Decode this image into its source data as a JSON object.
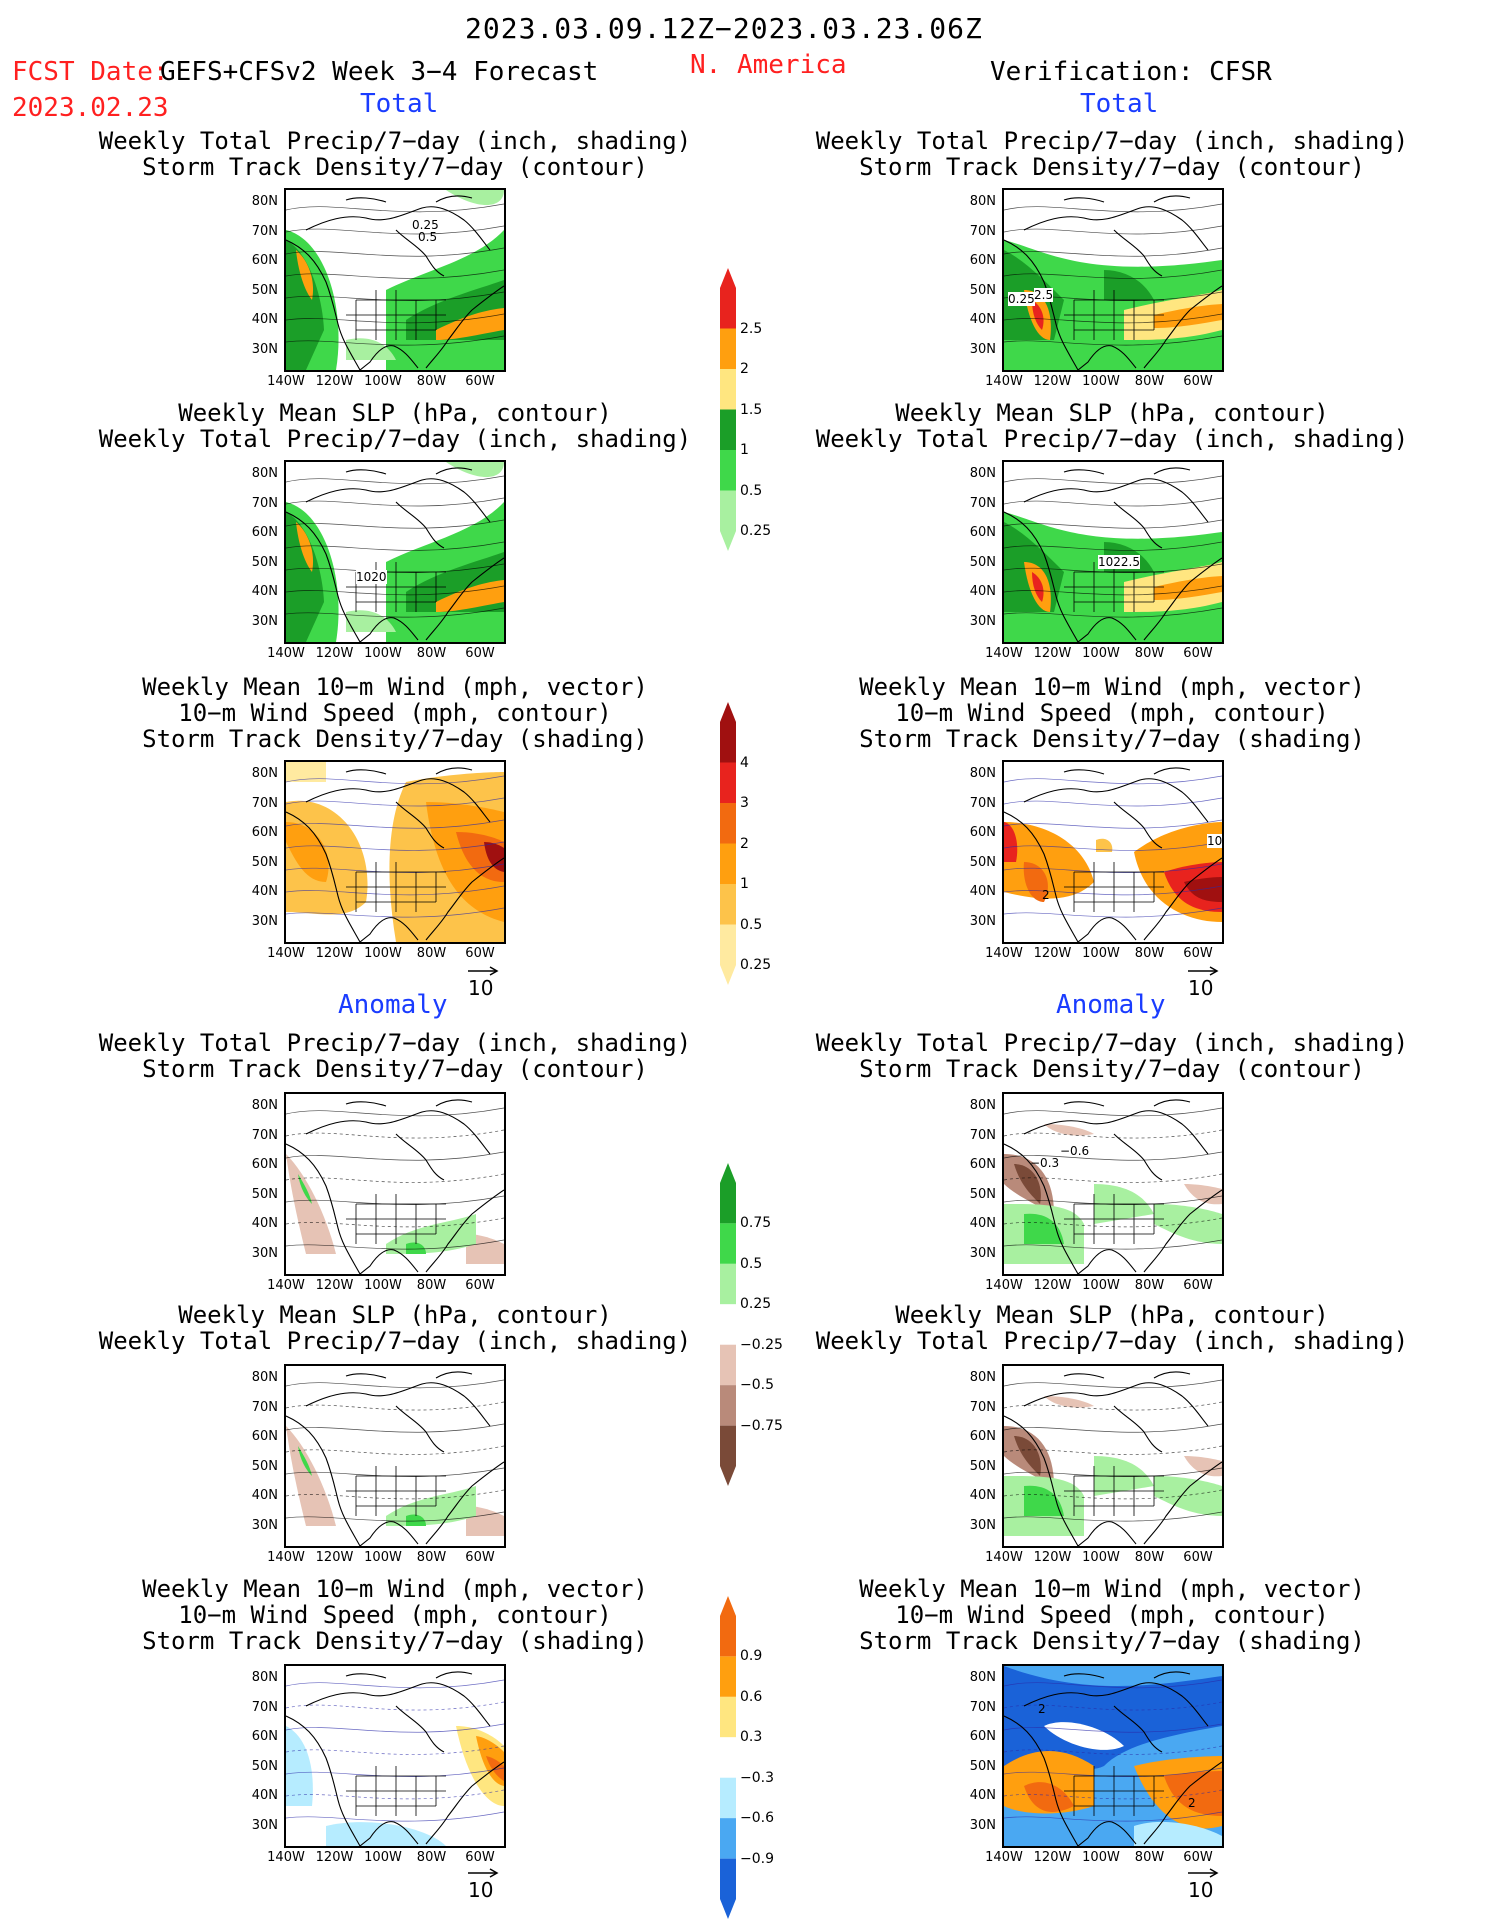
{
  "header": {
    "date_range": "2023.03.09.12Z−2023.03.23.06Z",
    "fcst_date_label": "FCST Date:",
    "model": "GEFS+CFSv2 Week 3−4 Forecast",
    "fcst_date": "2023.02.23",
    "region": "N. America",
    "verification": "Verification: CFSR"
  },
  "sections": {
    "total": "Total",
    "anomaly": "Anomaly"
  },
  "titles": {
    "precip_storm": [
      "Weekly Total Precip/7−day (inch, shading)",
      "Storm Track Density/7−day (contour)"
    ],
    "slp_precip": [
      "Weekly Mean SLP (hPa, contour)",
      "Weekly Total Precip/7−day (inch, shading)"
    ],
    "wind_storm": [
      "Weekly Mean 10−m Wind (mph, vector)",
      "10−m Wind Speed (mph, contour)",
      "Storm Track Density/7−day (shading)"
    ]
  },
  "axes": {
    "lat": [
      "80N",
      "70N",
      "60N",
      "50N",
      "40N",
      "30N"
    ],
    "lon": [
      "140W",
      "120W",
      "100W",
      "80W",
      "60W"
    ]
  },
  "vector_ref": "10",
  "map_labels": {
    "l_precip_total": "0.25",
    "l_precip_total_b": "0.5",
    "r_precip_total_a": "0.25",
    "r_precip_total_b": "2.5",
    "l_slp_total": "1020",
    "r_slp_total": "1022.5",
    "r_wind_total_a": "10",
    "r_wind_total_b": "2",
    "r_precip_anom_a": "−0.6",
    "r_precip_anom_b": "−0.3",
    "r_wind_anom_a": "2",
    "r_wind_anom_b": "2"
  },
  "colorbars": {
    "precip_total": {
      "labels": [
        "2.5",
        "2",
        "1.5",
        "1",
        "0.5",
        "0.25"
      ],
      "colors": [
        "#e8231e",
        "#ff9f0f",
        "#ffe680",
        "#1b9e28",
        "#3fd84a",
        "#a8f0a0"
      ]
    },
    "storm_total": {
      "labels": [
        "4",
        "3",
        "2",
        "1",
        "0.5",
        "0.25"
      ],
      "colors": [
        "#a01010",
        "#e8231e",
        "#f26a10",
        "#ff9f0f",
        "#fdc34a",
        "#ffeaa0"
      ]
    },
    "precip_anom": {
      "labels": [
        "0.75",
        "0.5",
        "0.25",
        "−0.25",
        "−0.5",
        "−0.75"
      ],
      "colors": [
        "#1b9e28",
        "#3fd84a",
        "#a8f0a0",
        "#ffffff",
        "#e6c3b5",
        "#b98a7a",
        "#7a4a38"
      ]
    },
    "storm_anom": {
      "labels": [
        "0.9",
        "0.6",
        "0.3",
        "−0.3",
        "−0.6",
        "−0.9"
      ],
      "colors": [
        "#f26a10",
        "#ff9f0f",
        "#ffe680",
        "#ffffff",
        "#b6ecff",
        "#4aa8f2",
        "#1a62d8"
      ]
    }
  }
}
